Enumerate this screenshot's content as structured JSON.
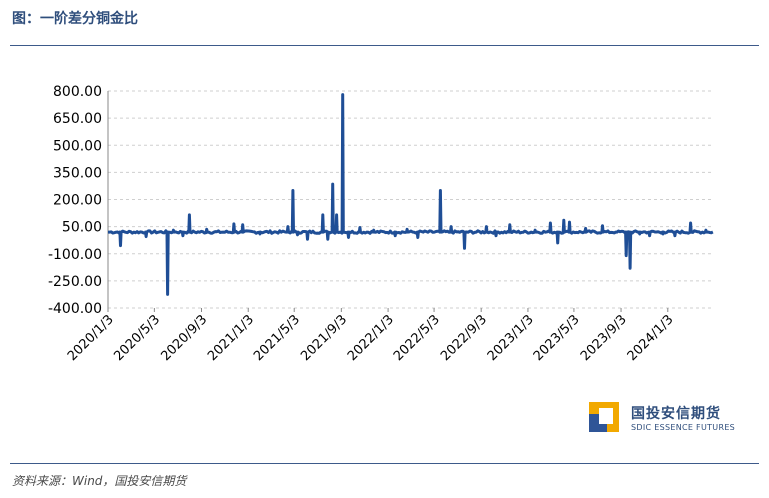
{
  "header": {
    "title": "图：一阶差分铜金比"
  },
  "footer": {
    "source": "资料来源：Wind，国投安信期货"
  },
  "logo": {
    "name_cn": "国投安信期货",
    "name_en": "SDIC ESSENCE FUTURES",
    "icon": "sdic-logo-icon",
    "colors": [
      "#f2a900",
      "#2f5597"
    ]
  },
  "chart_data": {
    "type": "line",
    "title": "",
    "xlabel": "",
    "ylabel": "",
    "line_color": "#1f4e96",
    "grid": true,
    "ylim": [
      -400,
      800
    ],
    "y_ticks": [
      "800.00",
      "650.00",
      "500.00",
      "350.00",
      "200.00",
      "50.00",
      "-100.00",
      "-250.00",
      "-400.00"
    ],
    "x_range": [
      "2020-01-03",
      "2024-04-30"
    ],
    "x_ticks": [
      "2020/1/3",
      "2020/5/3",
      "2020/9/3",
      "2021/1/3",
      "2021/5/3",
      "2021/9/3",
      "2022/1/3",
      "2022/5/3",
      "2022/9/3",
      "2023/1/3",
      "2023/5/3",
      "2023/9/3",
      "2024/1/3"
    ],
    "baseline": 20,
    "spikes": [
      {
        "x": "2020-02-03",
        "y": -55
      },
      {
        "x": "2020-04-10",
        "y": -5
      },
      {
        "x": "2020-06-05",
        "y": -325
      },
      {
        "x": "2020-06-20",
        "y": 30
      },
      {
        "x": "2020-07-15",
        "y": 0
      },
      {
        "x": "2020-08-01",
        "y": 115
      },
      {
        "x": "2020-09-15",
        "y": 35
      },
      {
        "x": "2020-11-25",
        "y": 65
      },
      {
        "x": "2020-12-18",
        "y": 60
      },
      {
        "x": "2021-02-01",
        "y": 10
      },
      {
        "x": "2021-04-15",
        "y": 50
      },
      {
        "x": "2021-04-28",
        "y": 250
      },
      {
        "x": "2021-05-10",
        "y": 5
      },
      {
        "x": "2021-06-05",
        "y": -20
      },
      {
        "x": "2021-07-15",
        "y": 115
      },
      {
        "x": "2021-07-28",
        "y": -20
      },
      {
        "x": "2021-08-10",
        "y": 285
      },
      {
        "x": "2021-08-20",
        "y": 115
      },
      {
        "x": "2021-09-05",
        "y": 780
      },
      {
        "x": "2021-09-20",
        "y": -10
      },
      {
        "x": "2021-10-20",
        "y": 45
      },
      {
        "x": "2021-11-25",
        "y": 30
      },
      {
        "x": "2022-01-20",
        "y": 0
      },
      {
        "x": "2022-02-20",
        "y": 35
      },
      {
        "x": "2022-03-20",
        "y": -10
      },
      {
        "x": "2022-05-18",
        "y": 250
      },
      {
        "x": "2022-06-15",
        "y": 50
      },
      {
        "x": "2022-07-20",
        "y": -70
      },
      {
        "x": "2022-09-15",
        "y": 50
      },
      {
        "x": "2022-10-10",
        "y": 0
      },
      {
        "x": "2022-11-15",
        "y": 60
      },
      {
        "x": "2023-01-20",
        "y": 30
      },
      {
        "x": "2023-03-01",
        "y": 70
      },
      {
        "x": "2023-03-20",
        "y": -40
      },
      {
        "x": "2023-04-05",
        "y": 85
      },
      {
        "x": "2023-04-20",
        "y": 75
      },
      {
        "x": "2023-06-01",
        "y": 40
      },
      {
        "x": "2023-07-15",
        "y": 55
      },
      {
        "x": "2023-08-20",
        "y": 20
      },
      {
        "x": "2023-09-15",
        "y": -110
      },
      {
        "x": "2023-09-25",
        "y": -180
      },
      {
        "x": "2023-10-20",
        "y": 10
      },
      {
        "x": "2023-11-15",
        "y": 0
      },
      {
        "x": "2023-12-20",
        "y": 10
      },
      {
        "x": "2024-01-20",
        "y": 0
      },
      {
        "x": "2024-03-01",
        "y": 70
      },
      {
        "x": "2024-04-10",
        "y": 30
      }
    ]
  }
}
